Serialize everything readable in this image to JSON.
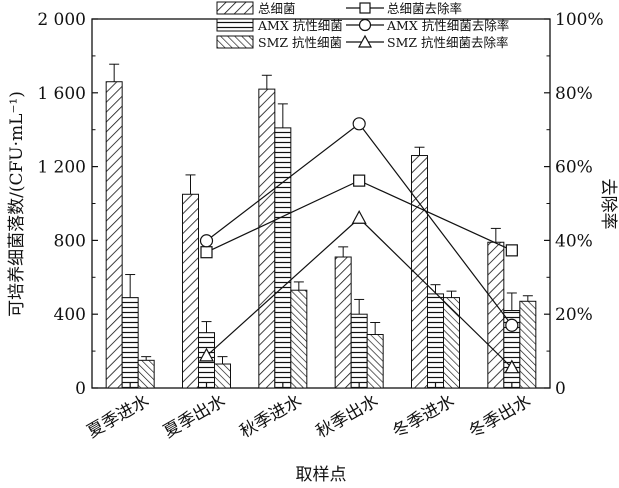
{
  "chart_data": {
    "type": "bar",
    "categories": [
      "夏季进水",
      "夏季出水",
      "秋季进水",
      "秋季出水",
      "冬季进水",
      "冬季出水"
    ],
    "xlabel": "取样点",
    "ylabel": "可培养细菌落数/(CFU·mL⁻¹)",
    "ylabel_right": "去除率",
    "ylim": [
      0,
      2000
    ],
    "ylim_right": [
      0,
      100
    ],
    "yticks": [
      "0",
      "400",
      "800",
      "1 200",
      "1 600",
      "2 000"
    ],
    "yticks_right": [
      "0",
      "20%",
      "40%",
      "60%",
      "80%",
      "100%"
    ],
    "legend_position": "top",
    "series": [
      {
        "name": "总细菌",
        "pattern": "hatch-forward",
        "values": [
          1660,
          1050,
          1620,
          710,
          1260,
          790
        ],
        "errors": [
          95,
          105,
          75,
          55,
          45,
          75
        ]
      },
      {
        "name": "AMX 抗性细菌",
        "pattern": "horizontal",
        "values": [
          490,
          300,
          1410,
          400,
          510,
          420
        ],
        "errors": [
          125,
          60,
          130,
          80,
          50,
          95
        ]
      },
      {
        "name": "SMZ 抗性细菌",
        "pattern": "hatch-back",
        "values": [
          150,
          130,
          530,
          290,
          490,
          470
        ],
        "errors": [
          20,
          40,
          45,
          65,
          35,
          30
        ]
      }
    ],
    "line_series": [
      {
        "name": "总细菌去除率",
        "marker": "square",
        "points": [
          [
            "夏季出水",
            36.8
          ],
          [
            "秋季出水",
            56.2
          ],
          [
            "冬季出水",
            37.3
          ]
        ]
      },
      {
        "name": "AMX 抗性细菌去除率",
        "marker": "circle",
        "points": [
          [
            "夏季出水",
            39.9
          ],
          [
            "秋季出水",
            71.6
          ],
          [
            "冬季出水",
            17.0
          ]
        ]
      },
      {
        "name": "SMZ 抗性细菌去除率",
        "marker": "triangle",
        "points": [
          [
            "夏季出水",
            8.7
          ],
          [
            "秋季出水",
            46.0
          ],
          [
            "冬季出水",
            5.5
          ]
        ]
      }
    ]
  }
}
